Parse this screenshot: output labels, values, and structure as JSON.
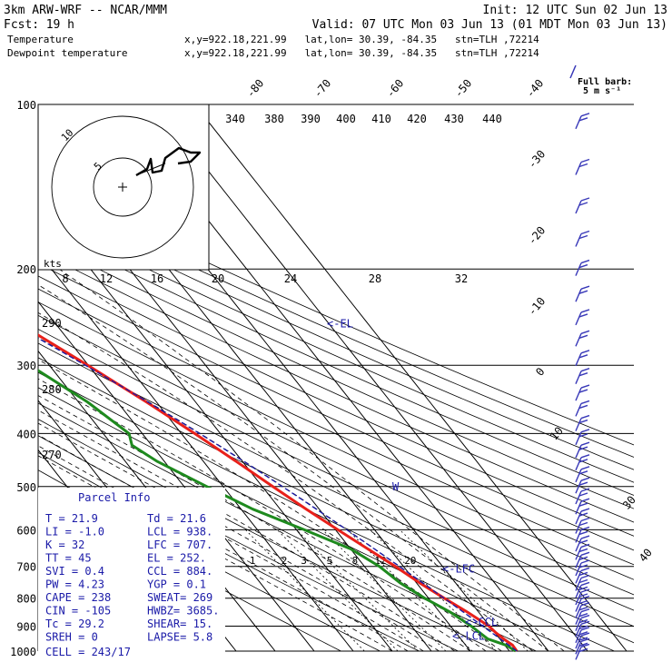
{
  "header": {
    "model": "3km ARW-WRF -- NCAR/MMM",
    "init": "Init: 12 UTC Sun 02 Jun 13",
    "fcst_label": "Fcst:",
    "fcst_hours": "19 h",
    "valid": "Valid: 07 UTC Mon 03 Jun 13 (01 MDT Mon 03 Jun 13)",
    "temp_line": {
      "name": "Temperature",
      "loc": "x,y=922.18,221.99   lat,lon= 30.39, -84.35   stn=TLH ,72214"
    },
    "dew_line": {
      "name": "Dewpoint temperature",
      "loc": "x,y=922.18,221.99   lat,lon= 30.39, -84.35   stn=TLH ,72214"
    }
  },
  "colors": {
    "temperature": "#e8201a",
    "dewpoint": "#1e8a1e",
    "parcel": "#1a1aa8",
    "barbs": "#3838b8",
    "isotherms": "#000000",
    "grid": "#000000"
  },
  "barb_legend": {
    "title": "Full barb:",
    "value": "5 m s⁻¹"
  },
  "pressure_labels": [
    "100",
    "200",
    "300",
    "400",
    "500",
    "600",
    "700",
    "800",
    "900",
    "1000"
  ],
  "hodograph": {
    "units": "kts",
    "speed_labels": [
      "8",
      "12",
      "16",
      "20",
      "24",
      "28",
      "32"
    ],
    "theta_labels": [
      "340",
      "380",
      "390",
      "400",
      "410",
      "420",
      "430",
      "440"
    ],
    "left_theta_labels": [
      "290",
      "280",
      "270"
    ],
    "ring_labels": [
      "5",
      "10"
    ]
  },
  "chart_data": {
    "type": "line",
    "title": "",
    "x_axis": "Temperature (°C)",
    "y_axis": "Pressure (hPa)",
    "y_scale": "log",
    "ylim": [
      1000,
      100
    ],
    "isotherm_labels": [
      {
        "value": -80,
        "text": "-80"
      },
      {
        "value": -70,
        "text": "-70"
      },
      {
        "value": -60,
        "text": "-60"
      },
      {
        "value": -50,
        "text": "-50"
      },
      {
        "value": -40,
        "text": "-40"
      },
      {
        "value": -30,
        "text": "-30"
      },
      {
        "value": -20,
        "text": "-20"
      },
      {
        "value": -10,
        "text": "-10"
      },
      {
        "value": 0,
        "text": "0"
      },
      {
        "value": 10,
        "text": "10"
      },
      {
        "value": 30,
        "text": "30"
      },
      {
        "value": 40,
        "text": "40"
      }
    ],
    "series": [
      {
        "name": "Temperature",
        "points": [
          {
            "p": 1000,
            "t": 21.9
          },
          {
            "p": 975,
            "t": 22.0
          },
          {
            "p": 950,
            "t": 21.0
          },
          {
            "p": 925,
            "t": 20.2
          },
          {
            "p": 900,
            "t": 19.8
          },
          {
            "p": 850,
            "t": 17.2
          },
          {
            "p": 800,
            "t": 14.0
          },
          {
            "p": 750,
            "t": 10.8
          },
          {
            "p": 700,
            "t": 7.9
          },
          {
            "p": 650,
            "t": 4.4
          },
          {
            "p": 600,
            "t": 0.6
          },
          {
            "p": 550,
            "t": -3.3
          },
          {
            "p": 500,
            "t": -7.3
          },
          {
            "p": 450,
            "t": -11.6
          },
          {
            "p": 400,
            "t": -16.6
          },
          {
            "p": 350,
            "t": -22.6
          },
          {
            "p": 300,
            "t": -30.2
          },
          {
            "p": 250,
            "t": -39.6
          },
          {
            "p": 200,
            "t": -50.8
          },
          {
            "p": 175,
            "t": -56.7
          },
          {
            "p": 150,
            "t": -61.7
          },
          {
            "p": 140,
            "t": -62.6
          },
          {
            "p": 130,
            "t": -60.8
          },
          {
            "p": 120,
            "t": -61.7
          },
          {
            "p": 110,
            "t": -64.1
          },
          {
            "p": 100,
            "t": -66.9
          }
        ]
      },
      {
        "name": "Dewpoint temperature",
        "points": [
          {
            "p": 1000,
            "t": 21.6
          },
          {
            "p": 975,
            "t": 20.3
          },
          {
            "p": 950,
            "t": 16.9
          },
          {
            "p": 900,
            "t": 15.3
          },
          {
            "p": 850,
            "t": 12.8
          },
          {
            "p": 800,
            "t": 9.0
          },
          {
            "p": 750,
            "t": 5.8
          },
          {
            "p": 700,
            "t": 3.8
          },
          {
            "p": 650,
            "t": 0.0
          },
          {
            "p": 600,
            "t": -8.0
          },
          {
            "p": 550,
            "t": -17.0
          },
          {
            "p": 500,
            "t": -24.2
          },
          {
            "p": 450,
            "t": -31.8
          },
          {
            "p": 420,
            "t": -35.0
          },
          {
            "p": 400,
            "t": -33.4
          },
          {
            "p": 350,
            "t": -37.7
          },
          {
            "p": 300,
            "t": -45.0
          },
          {
            "p": 275,
            "t": -50.5
          },
          {
            "p": 250,
            "t": -53.1
          },
          {
            "p": 225,
            "t": -53.6
          },
          {
            "p": 200,
            "t": -55.9
          },
          {
            "p": 185,
            "t": -59.5
          },
          {
            "p": 170,
            "t": -62.7
          },
          {
            "p": 150,
            "t": -68.6
          },
          {
            "p": 130,
            "t": -73.0
          },
          {
            "p": 115,
            "t": -75.8
          },
          {
            "p": 100,
            "t": -78.4
          }
        ]
      }
    ],
    "markers": [
      {
        "label": "EL",
        "p": 252
      },
      {
        "label": "LFC",
        "p": 707
      },
      {
        "label": "CCL",
        "p": 884
      },
      {
        "label": "LCL",
        "p": 938
      }
    ]
  },
  "parcel_info": {
    "title": "Parcel Info",
    "rows": [
      {
        "a": "T   =     21.9",
        "b": "Td  =  21.6"
      },
      {
        "a": "LI  =     -1.0",
        "b": "LCL =  938."
      },
      {
        "a": "K   =       32",
        "b": "LFC =  707."
      },
      {
        "a": "TT  =       45",
        "b": "EL  =  252."
      },
      {
        "a": "SVI =      0.4",
        "b": "CCL =  884."
      },
      {
        "a": "PW  =     4.23",
        "b": "YGP =   0.1"
      },
      {
        "a": "CAPE =     238",
        "b": "SWEAT=  269"
      },
      {
        "a": "CIN =     -105",
        "b": "HWBZ= 3685."
      },
      {
        "a": "Tc  =     29.2",
        "b": "SHEAR=  15."
      },
      {
        "a": "SREH =       0",
        "b": "LAPSE=  5.8"
      }
    ],
    "cell": "CELL = 243/17"
  }
}
